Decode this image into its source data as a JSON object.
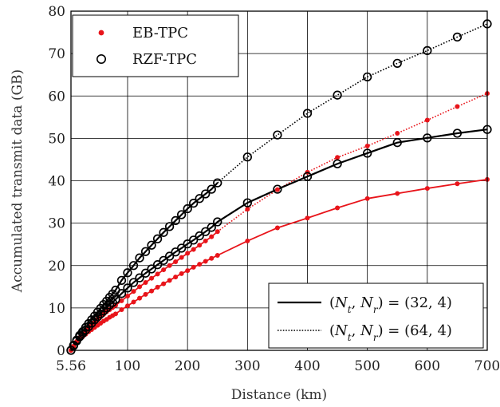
{
  "chart_data": {
    "type": "line",
    "xlabel": "Distance (km)",
    "ylabel": "Accumulated transmit data (GB)",
    "xlim": [
      5.56,
      700
    ],
    "ylim": [
      0,
      80
    ],
    "x_ticks": [
      5.56,
      100,
      200,
      300,
      400,
      500,
      600,
      700
    ],
    "x_tick_labels": [
      "5.56",
      "100",
      "200",
      "300",
      "400",
      "500",
      "600",
      "700"
    ],
    "y_ticks": [
      0,
      10,
      20,
      30,
      40,
      50,
      60,
      70,
      80
    ],
    "y_tick_labels": [
      "0",
      "10",
      "20",
      "30",
      "40",
      "50",
      "60",
      "70",
      "80"
    ],
    "grid": true,
    "legends": [
      {
        "placement": "top-left",
        "entries": [
          {
            "label": "EB-TPC",
            "marker": "filled-dot",
            "color": "#e8141a"
          },
          {
            "label": "RZF-TPC",
            "marker": "open-circle",
            "color": "#000000"
          }
        ]
      },
      {
        "placement": "bottom-right",
        "entries": [
          {
            "label": "(N_t, N_r) = (32, 4)",
            "line": "solid",
            "color": "#000000"
          },
          {
            "label": "(N_t, N_r) = (64, 4)",
            "line": "dotted",
            "color": "#000000"
          }
        ]
      }
    ],
    "series": [
      {
        "scheme": "EB-TPC",
        "config": "(32,4)",
        "color": "#e8141a",
        "marker": "filled-dot",
        "line": "solid",
        "x": [
          5.56,
          10,
          15,
          20,
          25,
          30,
          35,
          40,
          45,
          50,
          55,
          60,
          65,
          70,
          75,
          80,
          90,
          100,
          110,
          120,
          130,
          140,
          150,
          160,
          170,
          180,
          190,
          200,
          210,
          220,
          230,
          240,
          250,
          300,
          350,
          400,
          450,
          500,
          550,
          600,
          650,
          700
        ],
        "y": [
          0,
          0.9,
          1.8,
          2.6,
          3.2,
          3.8,
          4.4,
          4.9,
          5.4,
          5.9,
          6.4,
          6.9,
          7.3,
          7.8,
          8.2,
          8.6,
          9.6,
          10.5,
          11.4,
          12.3,
          13.2,
          14.0,
          14.9,
          15.7,
          16.5,
          17.3,
          18.1,
          18.8,
          19.6,
          20.3,
          21.0,
          21.7,
          22.4,
          25.8,
          28.9,
          31.2,
          33.6,
          35.8,
          37.0,
          38.2,
          39.3,
          40.3
        ]
      },
      {
        "scheme": "EB-TPC",
        "config": "(64,4)",
        "color": "#e8141a",
        "marker": "filled-dot",
        "line": "solid-then-dotted",
        "x": [
          5.56,
          10,
          15,
          20,
          25,
          30,
          35,
          40,
          45,
          50,
          55,
          60,
          65,
          70,
          75,
          80,
          90,
          100,
          110,
          120,
          130,
          140,
          150,
          160,
          170,
          180,
          190,
          200,
          210,
          220,
          230,
          240,
          250,
          300,
          350,
          400,
          450,
          500,
          550,
          600,
          650,
          700
        ],
        "y": [
          0,
          1.0,
          2.1,
          3.0,
          3.8,
          4.6,
          5.3,
          6.0,
          6.6,
          7.3,
          7.9,
          8.5,
          9.1,
          9.6,
          10.1,
          10.6,
          11.7,
          12.8,
          13.9,
          15.0,
          16.0,
          17.0,
          18.0,
          19.0,
          20.0,
          20.9,
          21.9,
          22.9,
          23.8,
          24.8,
          25.8,
          26.8,
          28.0,
          33.3,
          37.9,
          42.0,
          45.5,
          48.2,
          51.2,
          54.3,
          57.5,
          60.6
        ],
        "dotted_from_x": 250
      },
      {
        "scheme": "RZF-TPC",
        "config": "(32,4)",
        "color": "#000000",
        "marker": "open-circle",
        "line": "solid",
        "x": [
          5.56,
          10,
          15,
          20,
          25,
          30,
          35,
          40,
          45,
          50,
          55,
          60,
          65,
          70,
          75,
          80,
          90,
          100,
          110,
          120,
          130,
          140,
          150,
          160,
          170,
          180,
          190,
          200,
          210,
          220,
          230,
          240,
          250,
          300,
          350,
          400,
          450,
          500,
          550,
          600,
          650,
          700
        ],
        "y": [
          0,
          1.1,
          2.2,
          3.2,
          4.0,
          4.8,
          5.6,
          6.4,
          7.2,
          7.9,
          8.6,
          9.3,
          10.0,
          10.7,
          11.3,
          12.0,
          13.4,
          14.7,
          16.0,
          17.1,
          18.2,
          19.2,
          20.2,
          21.2,
          22.2,
          23.2,
          24.1,
          25.1,
          26.0,
          27.0,
          28.0,
          29.0,
          30.3,
          34.8,
          38.0,
          41.0,
          44.0,
          46.5,
          49.0,
          50.1,
          51.2,
          52.1
        ]
      },
      {
        "scheme": "RZF-TPC",
        "config": "(64,4)",
        "color": "#000000",
        "marker": "open-circle",
        "line": "solid-then-dotted",
        "x": [
          5.56,
          10,
          15,
          20,
          25,
          30,
          35,
          40,
          45,
          50,
          55,
          60,
          65,
          70,
          75,
          80,
          90,
          100,
          110,
          120,
          130,
          140,
          150,
          160,
          170,
          180,
          190,
          200,
          210,
          220,
          230,
          240,
          250,
          300,
          350,
          400,
          450,
          500,
          550,
          600,
          650,
          700
        ],
        "y": [
          0,
          1.2,
          2.4,
          3.5,
          4.4,
          5.4,
          6.3,
          7.2,
          8.1,
          9.0,
          9.9,
          10.8,
          11.6,
          12.5,
          13.3,
          14.2,
          16.5,
          18.3,
          20.0,
          21.8,
          23.3,
          24.8,
          26.3,
          27.8,
          29.2,
          30.6,
          32.0,
          33.4,
          34.7,
          35.8,
          36.9,
          38.0,
          39.5,
          45.6,
          50.8,
          55.9,
          60.2,
          64.5,
          67.7,
          70.7,
          73.9,
          77.0
        ],
        "dotted_from_x": 250
      }
    ]
  }
}
